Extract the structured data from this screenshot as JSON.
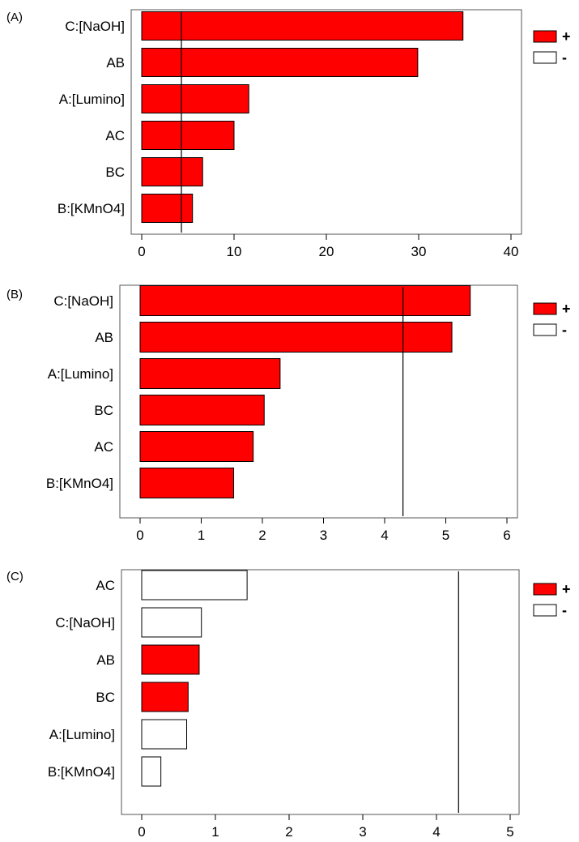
{
  "colors": {
    "positive": "#ff0000",
    "negative": "#ffffff",
    "stroke": "#000000"
  },
  "chart_data": [
    {
      "type": "bar",
      "orientation": "horizontal",
      "panel_label": "(A)",
      "categories": [
        "C:[NaOH]",
        "AB",
        "A:[Lumino]",
        "AC",
        "BC",
        "B:[KMnO4]"
      ],
      "values": [
        34.8,
        29.9,
        11.6,
        10.0,
        6.6,
        5.5
      ],
      "signs": [
        "+",
        "+",
        "+",
        "+",
        "+",
        "+"
      ],
      "xlim": [
        0,
        40
      ],
      "xticks": [
        "0",
        "10",
        "20",
        "30",
        "40"
      ],
      "reference_line": 4.3,
      "legend": {
        "position": "right",
        "entries": [
          "+",
          "-"
        ]
      }
    },
    {
      "type": "bar",
      "orientation": "horizontal",
      "panel_label": "(B)",
      "categories": [
        "C:[NaOH]",
        "AB",
        "A:[Lumino]",
        "BC",
        "AC",
        "B:[KMnO4]"
      ],
      "values": [
        5.4,
        5.1,
        2.29,
        2.03,
        1.85,
        1.53
      ],
      "signs": [
        "+",
        "+",
        "+",
        "+",
        "+",
        "+"
      ],
      "xlim": [
        0,
        6
      ],
      "xticks": [
        "0",
        "1",
        "2",
        "3",
        "4",
        "5",
        "6"
      ],
      "reference_line": 4.3,
      "legend": {
        "position": "right",
        "entries": [
          "+",
          "-"
        ]
      }
    },
    {
      "type": "bar",
      "orientation": "horizontal",
      "panel_label": "(C)",
      "categories": [
        "AC",
        "C:[NaOH]",
        "AB",
        "BC",
        "A:[Lumino]",
        "B:[KMnO4]"
      ],
      "values": [
        1.43,
        0.81,
        0.78,
        0.63,
        0.61,
        0.26
      ],
      "signs": [
        "-",
        "-",
        "+",
        "+",
        "-",
        "-"
      ],
      "xlim": [
        0,
        5
      ],
      "xticks": [
        "0",
        "1",
        "2",
        "3",
        "4",
        "5"
      ],
      "reference_line": 4.3,
      "legend": {
        "position": "right",
        "entries": [
          "+",
          "-"
        ]
      }
    }
  ]
}
